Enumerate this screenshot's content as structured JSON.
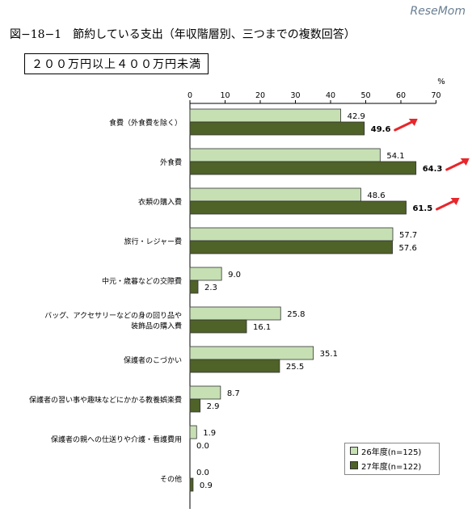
{
  "header": {
    "figure_title": "図−18−1　節約している支出（年収階層別、三つまでの複数回答）",
    "subtitle": "２００万円以上４００万円未満",
    "watermark": "ReseMom"
  },
  "chart_data": {
    "type": "bar",
    "orientation": "horizontal",
    "unit": "%",
    "xlim": [
      0,
      70
    ],
    "ticks": [
      0,
      10,
      20,
      30,
      40,
      50,
      60,
      70
    ],
    "categories": [
      [
        "食費（外食費を除く）"
      ],
      [
        "外食費"
      ],
      [
        "衣類の購入費"
      ],
      [
        "旅行・レジャー費"
      ],
      [
        "中元・歳暮などの交際費"
      ],
      [
        "バッグ、アクセサリーなどの身の回り品や",
        "装飾品の購入費"
      ],
      [
        "保護者のこづかい"
      ],
      [
        "保護者の習い事や趣味などにかかる教養娯楽費"
      ],
      [
        "保護者の親への仕送りや介護・看護費用"
      ],
      [
        "その他"
      ]
    ],
    "series": [
      {
        "name": "26年度(n=125)",
        "color": "#c6e0b4",
        "values": [
          42.9,
          54.1,
          48.6,
          57.7,
          9.0,
          25.8,
          35.1,
          8.7,
          1.9,
          0.0
        ]
      },
      {
        "name": "27年度(n=122)",
        "color": "#4f6228",
        "values": [
          49.6,
          64.3,
          61.5,
          57.6,
          2.3,
          16.1,
          25.5,
          2.9,
          0.0,
          0.9
        ]
      }
    ],
    "highlighted_categories": [
      0,
      1,
      2
    ],
    "annotation_color": "#e8262b",
    "legend_position": "bottom-right"
  }
}
